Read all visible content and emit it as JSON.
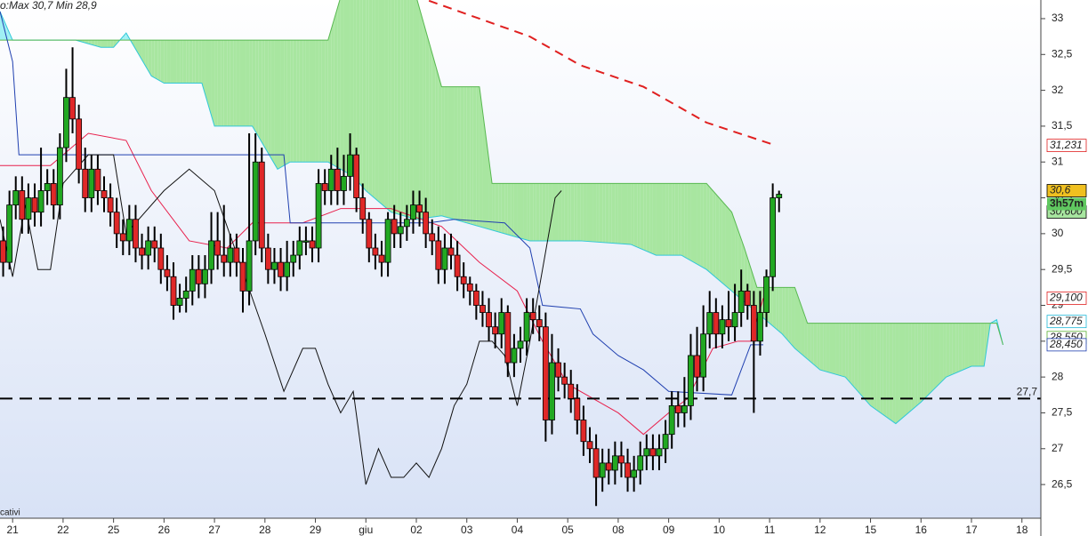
{
  "chart_data": {
    "type": "candlestick",
    "header": "o:Max 30,7 Min 28,9",
    "footer": "cativi",
    "xlim": [
      0,
      165
    ],
    "xticks": [
      {
        "value": 2,
        "label": "21"
      },
      {
        "value": 10,
        "label": "22"
      },
      {
        "value": 18,
        "label": "25"
      },
      {
        "value": 26,
        "label": "26"
      },
      {
        "value": 34,
        "label": "27"
      },
      {
        "value": 42,
        "label": "28"
      },
      {
        "value": 50,
        "label": "29"
      },
      {
        "value": 58,
        "label": "giu"
      },
      {
        "value": 66,
        "label": "02"
      },
      {
        "value": 74,
        "label": "03"
      },
      {
        "value": 82,
        "label": "04"
      },
      {
        "value": 90,
        "label": "05"
      },
      {
        "value": 98,
        "label": "08"
      },
      {
        "value": 106,
        "label": "09"
      },
      {
        "value": 114,
        "label": "10"
      },
      {
        "value": 122,
        "label": "11"
      },
      {
        "value": 130,
        "label": "12"
      },
      {
        "value": 138,
        "label": "15"
      },
      {
        "value": 146,
        "label": "16"
      },
      {
        "value": 154,
        "label": "17"
      },
      {
        "value": 162,
        "label": "18"
      }
    ],
    "ylim": [
      26.03,
      33.26
    ],
    "yticks": [
      {
        "value": 26.5,
        "label": "26,5"
      },
      27,
      {
        "value": 27.5,
        "label": "27,5"
      },
      28,
      {
        "value": 28.5,
        "label": "28,5"
      },
      29,
      {
        "value": 29.5,
        "label": "29,5"
      },
      30,
      {
        "value": 30.5,
        "label": "30,5"
      },
      31,
      {
        "value": 31.5,
        "label": "31,5"
      },
      32,
      {
        "value": 32.5,
        "label": "32,5"
      },
      33
    ],
    "up_color": "#22a822",
    "down_color": "#e02828",
    "open": [
      29.9,
      29.6,
      30.4,
      30.6,
      30.2,
      30.5,
      30.3,
      30.6,
      30.7,
      30.4,
      31.2,
      31.9,
      31.6,
      30.9,
      30.5,
      30.9,
      30.6,
      30.5,
      30.3,
      30.0,
      29.9,
      30.2,
      29.8,
      29.7,
      29.9,
      29.8,
      29.5,
      29.4,
      29.0,
      29.1,
      29.2,
      29.5,
      29.3,
      29.5,
      29.9,
      29.7,
      29.6,
      29.8,
      29.6,
      29.2,
      29.9,
      31.0,
      29.8,
      29.5,
      29.6,
      29.4,
      29.6,
      29.7,
      29.9,
      29.9,
      29.8,
      30.7,
      30.6,
      30.9,
      30.6,
      30.8,
      31.1,
      30.5,
      30.2,
      29.8,
      29.7,
      29.6,
      30.2,
      30.0,
      30.1,
      30.2,
      30.4,
      30.3,
      30.0,
      29.9,
      29.5,
      29.8,
      29.7,
      29.4,
      29.3,
      29.2,
      29.0,
      28.9,
      28.7,
      28.6,
      28.9,
      28.2,
      28.4,
      28.5,
      28.9,
      28.8,
      28.7,
      27.4,
      28.2,
      28.0,
      27.9,
      27.7,
      27.4,
      27.1,
      27.0,
      26.6,
      26.8,
      26.7,
      26.9,
      26.8,
      26.6,
      26.7,
      26.9,
      27.0,
      26.9,
      27.0,
      27.2,
      27.6,
      27.5,
      27.6,
      28.3,
      28.0,
      28.6,
      28.9,
      28.6,
      28.8,
      28.7,
      28.9,
      29.2,
      29.0,
      28.5,
      28.9,
      29.4,
      30.5
    ],
    "high": [
      30.1,
      30.6,
      30.8,
      30.8,
      30.7,
      30.7,
      31.2,
      30.9,
      30.9,
      31.4,
      32.3,
      32.6,
      31.8,
      31.2,
      31.1,
      31.1,
      30.8,
      30.7,
      30.5,
      30.2,
      30.4,
      30.4,
      30.0,
      30.1,
      30.1,
      30.0,
      29.7,
      29.6,
      29.3,
      29.4,
      29.7,
      29.7,
      29.7,
      30.3,
      30.3,
      30.4,
      30.0,
      30.0,
      29.8,
      31.4,
      31.4,
      31.2,
      30.0,
      29.8,
      29.8,
      29.9,
      29.9,
      30.1,
      30.1,
      30.1,
      30.9,
      30.9,
      31.1,
      31.2,
      31.1,
      31.4,
      31.2,
      30.7,
      30.3,
      30.0,
      29.9,
      30.3,
      30.4,
      30.3,
      30.4,
      30.6,
      30.6,
      30.5,
      30.2,
      30.1,
      30.0,
      30.0,
      29.9,
      29.6,
      29.4,
      29.3,
      29.2,
      29.1,
      28.9,
      29.1,
      29.0,
      28.6,
      28.7,
      29.1,
      29.1,
      29.0,
      28.9,
      28.6,
      28.4,
      28.2,
      28.1,
      27.9,
      27.6,
      27.3,
      27.2,
      27.0,
      27.0,
      27.1,
      27.1,
      27.0,
      26.9,
      27.1,
      27.2,
      27.2,
      27.2,
      27.4,
      27.8,
      27.8,
      28.0,
      28.6,
      28.7,
      29.0,
      29.2,
      29.1,
      29.0,
      29.2,
      29.3,
      29.5,
      29.3,
      29.2,
      29.2,
      29.5,
      30.7,
      30.6
    ],
    "low": [
      29.4,
      29.5,
      30.2,
      30.0,
      30.0,
      30.1,
      30.1,
      30.4,
      30.2,
      30.2,
      31.0,
      31.4,
      30.7,
      30.3,
      30.3,
      30.4,
      30.3,
      30.1,
      29.8,
      29.7,
      29.7,
      29.6,
      29.5,
      29.5,
      29.6,
      29.3,
      29.2,
      28.8,
      28.9,
      28.9,
      29.0,
      29.1,
      29.1,
      29.3,
      29.5,
      29.4,
      29.4,
      29.4,
      28.9,
      29.0,
      29.7,
      29.6,
      29.3,
      29.3,
      29.2,
      29.2,
      29.4,
      29.5,
      29.7,
      29.6,
      29.6,
      30.4,
      30.4,
      30.4,
      30.4,
      30.6,
      30.3,
      30.0,
      29.6,
      29.5,
      29.4,
      29.4,
      29.8,
      29.8,
      29.9,
      30.0,
      30.1,
      29.8,
      29.7,
      29.3,
      29.3,
      29.5,
      29.2,
      29.1,
      29.0,
      28.8,
      28.7,
      28.5,
      28.4,
      28.4,
      28.0,
      28.0,
      28.2,
      28.3,
      28.6,
      28.5,
      27.1,
      27.2,
      27.8,
      27.7,
      27.5,
      27.2,
      26.9,
      26.8,
      26.2,
      26.4,
      26.5,
      26.5,
      26.6,
      26.4,
      26.4,
      26.5,
      26.7,
      26.7,
      26.7,
      26.8,
      27.0,
      27.3,
      27.3,
      27.4,
      27.8,
      27.8,
      28.4,
      28.4,
      28.4,
      28.5,
      28.5,
      28.7,
      28.8,
      27.5,
      28.3,
      28.7,
      29.2,
      30.3
    ],
    "close": [
      29.6,
      30.4,
      30.6,
      30.2,
      30.5,
      30.3,
      30.6,
      30.7,
      30.4,
      31.2,
      31.9,
      31.6,
      30.9,
      30.5,
      30.9,
      30.6,
      30.5,
      30.3,
      30.0,
      29.9,
      30.2,
      29.8,
      29.7,
      29.9,
      29.8,
      29.5,
      29.4,
      29.0,
      29.1,
      29.2,
      29.5,
      29.3,
      29.5,
      29.9,
      29.7,
      29.6,
      29.8,
      29.6,
      29.2,
      29.9,
      31.0,
      29.8,
      29.5,
      29.6,
      29.4,
      29.6,
      29.7,
      29.9,
      29.9,
      29.8,
      30.7,
      30.6,
      30.9,
      30.6,
      30.8,
      31.1,
      30.5,
      30.2,
      29.8,
      29.7,
      29.6,
      30.2,
      30.0,
      30.1,
      30.2,
      30.4,
      30.3,
      30.0,
      29.9,
      29.5,
      29.8,
      29.7,
      29.4,
      29.3,
      29.2,
      29.0,
      28.9,
      28.7,
      28.6,
      28.9,
      28.2,
      28.4,
      28.5,
      28.9,
      28.8,
      28.7,
      27.4,
      28.2,
      28.0,
      27.9,
      27.7,
      27.4,
      27.1,
      27.0,
      26.6,
      26.8,
      26.7,
      26.9,
      26.8,
      26.6,
      26.7,
      26.9,
      27.0,
      26.9,
      27.0,
      27.2,
      27.6,
      27.5,
      27.6,
      28.3,
      28.0,
      28.6,
      28.9,
      28.6,
      28.8,
      28.7,
      28.9,
      29.2,
      29.0,
      28.5,
      28.9,
      29.4,
      30.5,
      30.55
    ],
    "cloud": {
      "fill_up": "#a8e6a0",
      "fill_down": "#9ff0f4",
      "a": {
        "color": "#30c8d8",
        "x": [
          0,
          2,
          12,
          16,
          18,
          20,
          24,
          26,
          32,
          34,
          40,
          44,
          46,
          52,
          56,
          58,
          62,
          66,
          70,
          76,
          80,
          84,
          92,
          100,
          104,
          108,
          112,
          116,
          120,
          124,
          126,
          130,
          134,
          138,
          142,
          146,
          150,
          154,
          156,
          157,
          158,
          159
        ],
        "values": [
          33.1,
          32.7,
          32.7,
          32.6,
          32.6,
          32.8,
          32.2,
          32.1,
          32.1,
          31.5,
          31.5,
          30.9,
          31.0,
          31.0,
          30.8,
          30.6,
          30.3,
          30.2,
          30.25,
          30.1,
          30.0,
          29.9,
          29.9,
          29.85,
          29.7,
          29.7,
          29.5,
          29.2,
          28.9,
          28.6,
          28.4,
          28.1,
          28.0,
          27.6,
          27.35,
          27.65,
          28.0,
          28.15,
          28.15,
          28.75,
          28.8,
          28.45
        ]
      },
      "b": {
        "color": "#58b850",
        "x": [
          0,
          52,
          54,
          66,
          70,
          76,
          78,
          112,
          116,
          118,
          120,
          126,
          128,
          156,
          158,
          159
        ],
        "values": [
          32.7,
          32.7,
          33.3,
          33.3,
          32.05,
          32.05,
          30.7,
          30.7,
          30.3,
          29.8,
          29.25,
          29.25,
          28.75,
          28.75,
          28.75,
          28.45
        ]
      }
    },
    "lines": [
      {
        "color": "#e8204c",
        "width": 1,
        "x": [
          0,
          8,
          14,
          20,
          24,
          30,
          36,
          40,
          48,
          54,
          62,
          70,
          76,
          82,
          86,
          90,
          94,
          98,
          102,
          106,
          109,
          113,
          117,
          119,
          121
        ],
        "values": [
          30.95,
          30.95,
          31.4,
          31.3,
          30.6,
          29.9,
          29.8,
          30.15,
          30.15,
          30.35,
          30.35,
          30.1,
          29.6,
          29.2,
          28.5,
          27.9,
          27.7,
          27.5,
          27.2,
          27.5,
          27.7,
          28.4,
          28.5,
          28.5,
          29.1
        ]
      },
      {
        "color": "#2040b0",
        "width": 1,
        "x": [
          0,
          2,
          3,
          45,
          46,
          68,
          72,
          80,
          84,
          86,
          92,
          94,
          98,
          102,
          106,
          116,
          119,
          121
        ],
        "values": [
          33.1,
          32.4,
          31.1,
          31.1,
          30.15,
          30.15,
          30.2,
          30.15,
          29.8,
          29.0,
          28.95,
          28.6,
          28.3,
          28.1,
          27.8,
          27.75,
          28.45,
          28.45
        ]
      },
      {
        "color": "#101010",
        "width": 1,
        "x": [
          0,
          2,
          4,
          6,
          8,
          10,
          14,
          18,
          20,
          26,
          30,
          34,
          38,
          42,
          45,
          48,
          50,
          52,
          54,
          56,
          58,
          60,
          62,
          64,
          66,
          68,
          70,
          72,
          74,
          76,
          78,
          80,
          82,
          84,
          86,
          88,
          89
        ],
        "values": [
          30.2,
          29.4,
          30.4,
          29.5,
          29.5,
          30.7,
          31.1,
          31.1,
          30.0,
          30.6,
          30.9,
          30.6,
          29.6,
          28.6,
          27.8,
          28.4,
          28.4,
          27.9,
          27.5,
          27.8,
          26.5,
          27.0,
          26.6,
          26.6,
          26.8,
          26.6,
          27.0,
          27.6,
          27.9,
          28.5,
          28.5,
          28.3,
          27.6,
          28.5,
          29.5,
          30.5,
          30.6
        ]
      },
      {
        "color": "#e02020",
        "width": 2,
        "dash": true,
        "x": [
          68,
          76,
          84,
          92,
          102,
          112,
          123
        ],
        "values": [
          33.25,
          33.0,
          32.75,
          32.35,
          32.05,
          31.55,
          31.23
        ]
      }
    ],
    "hline": {
      "value": 27.7,
      "label": "27,7",
      "color": "#000000"
    },
    "badges": [
      {
        "value": 31.231,
        "label": "31,231",
        "color": "#e02020",
        "bg": "#ffffff"
      },
      {
        "value": 30.6,
        "label": "30,600",
        "color": "#000000",
        "bg": "#a8e6a0",
        "offset": 24
      },
      {
        "value": 30.6,
        "label": "30,6",
        "color": "#000000",
        "bg": "#f0c020"
      },
      {
        "value": 29.1,
        "label": "29,100",
        "color": "#e02020",
        "bg": "#ffffff"
      },
      {
        "value": 28.775,
        "label": "28,775",
        "color": "#20b8d8",
        "bg": "#ffffff"
      },
      {
        "value": 28.55,
        "label": "28,550",
        "color": "#58b030",
        "bg": "#ffffff"
      },
      {
        "value": 28.45,
        "label": "28,450",
        "color": "#2040b0",
        "bg": "#ffffff"
      }
    ],
    "countdown": {
      "label": "3h57m",
      "value": 30.6,
      "bg": "#60c860"
    }
  }
}
